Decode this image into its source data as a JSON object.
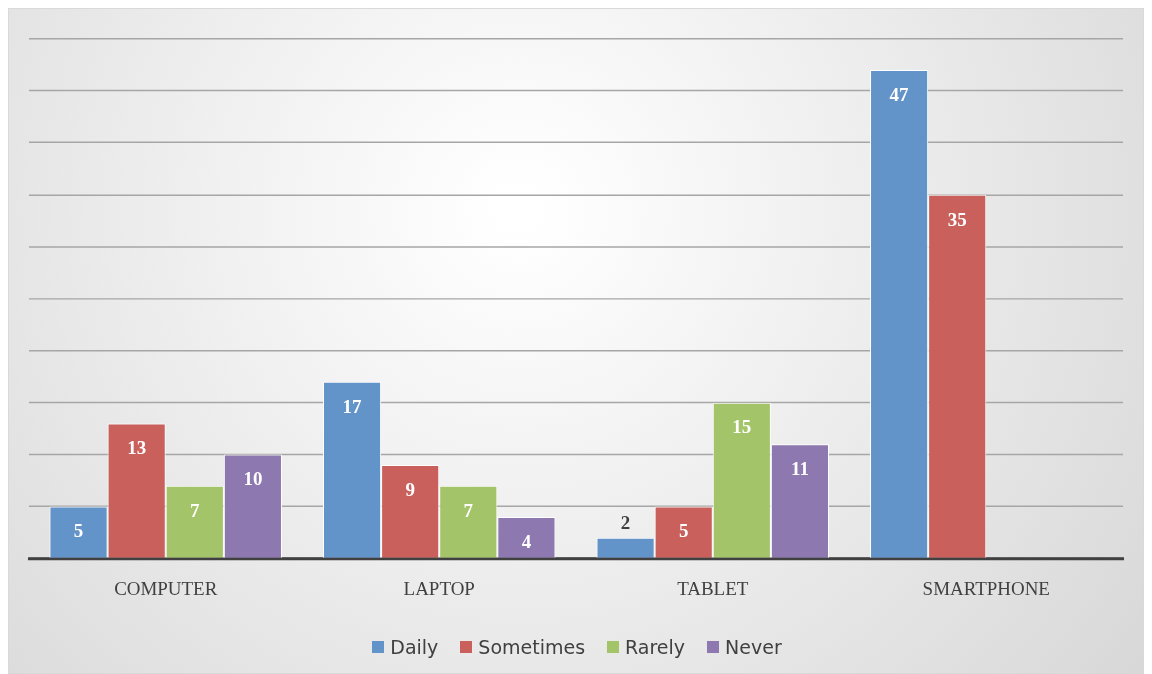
{
  "chart_data": {
    "type": "bar",
    "categories": [
      "COMPUTER",
      "LAPTOP",
      "TABLET",
      "SMARTPHONE"
    ],
    "series": [
      {
        "name": "Daily",
        "color": "#6394c9",
        "values": [
          5,
          17,
          2,
          47
        ]
      },
      {
        "name": "Sometimes",
        "color": "#c9605c",
        "values": [
          13,
          9,
          5,
          35
        ]
      },
      {
        "name": "Rarely",
        "color": "#a4c46a",
        "values": [
          7,
          7,
          15,
          null
        ]
      },
      {
        "name": "Never",
        "color": "#8e78b0",
        "values": [
          10,
          4,
          11,
          null
        ]
      }
    ],
    "grid": "y",
    "legend": "bottom",
    "data_labels": true
  }
}
